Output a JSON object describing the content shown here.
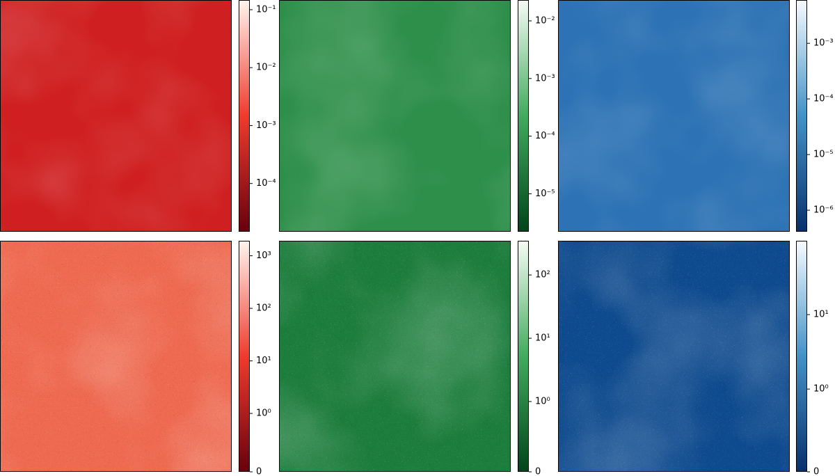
{
  "chart_data": [
    {
      "type": "image",
      "colors": [
        "#67000d",
        "#ef3b2c",
        "#fff5f0"
      ],
      "yscale": "log",
      "ylim": [
        1.47e-05,
        0.147
      ],
      "yticks": [
        {
          "value": 0.1,
          "label": "10⁻¹"
        },
        {
          "value": 0.01,
          "label": "10⁻²"
        },
        {
          "value": 0.001,
          "label": "10⁻³"
        },
        {
          "value": 0.0001,
          "label": "10⁻⁴"
        }
      ]
    },
    {
      "type": "image",
      "colors": [
        "#00441b",
        "#41ab5d",
        "#f7fcf5"
      ],
      "yscale": "log",
      "ylim": [
        2.2e-06,
        0.023
      ],
      "yticks": [
        {
          "value": 0.01,
          "label": "10⁻²"
        },
        {
          "value": 0.001,
          "label": "10⁻³"
        },
        {
          "value": 0.0001,
          "label": "10⁻⁴"
        },
        {
          "value": 1e-05,
          "label": "10⁻⁵"
        }
      ]
    },
    {
      "type": "image",
      "colors": [
        "#08306b",
        "#4292c6",
        "#f7fbff"
      ],
      "yscale": "log",
      "ylim": [
        4.1e-07,
        0.006
      ],
      "yticks": [
        {
          "value": 0.001,
          "label": "10⁻³"
        },
        {
          "value": 0.0001,
          "label": "10⁻⁴"
        },
        {
          "value": 1e-05,
          "label": "10⁻⁵"
        },
        {
          "value": 1e-06,
          "label": "10⁻⁶"
        }
      ]
    },
    {
      "type": "image",
      "colors": [
        "#67000d",
        "#ef3b2c",
        "#fff5f0"
      ],
      "yscale": "symlog",
      "linthresh": 1,
      "ylim": [
        0,
        1930
      ],
      "yticks": [
        0,
        {
          "value": 1,
          "label": "10⁰"
        },
        {
          "value": 10,
          "label": "10¹"
        },
        {
          "value": 100,
          "label": "10²"
        },
        {
          "value": 1000,
          "label": "10³"
        }
      ]
    },
    {
      "type": "image",
      "colors": [
        "#00441b",
        "#41ab5d",
        "#f7fcf5"
      ],
      "yscale": "symlog",
      "linthresh": 1,
      "ylim": [
        0,
        347
      ],
      "yticks": [
        0,
        {
          "value": 1,
          "label": "10⁰"
        },
        {
          "value": 10,
          "label": "10¹"
        },
        {
          "value": 100,
          "label": "10²"
        }
      ]
    },
    {
      "type": "image",
      "colors": [
        "#08306b",
        "#4292c6",
        "#f7fbff"
      ],
      "yscale": "symlog",
      "linthresh": 1,
      "ylim": [
        0,
        98
      ],
      "yticks": [
        0,
        {
          "value": 1,
          "label": "10⁰"
        },
        {
          "value": 10,
          "label": "10¹"
        }
      ]
    }
  ]
}
